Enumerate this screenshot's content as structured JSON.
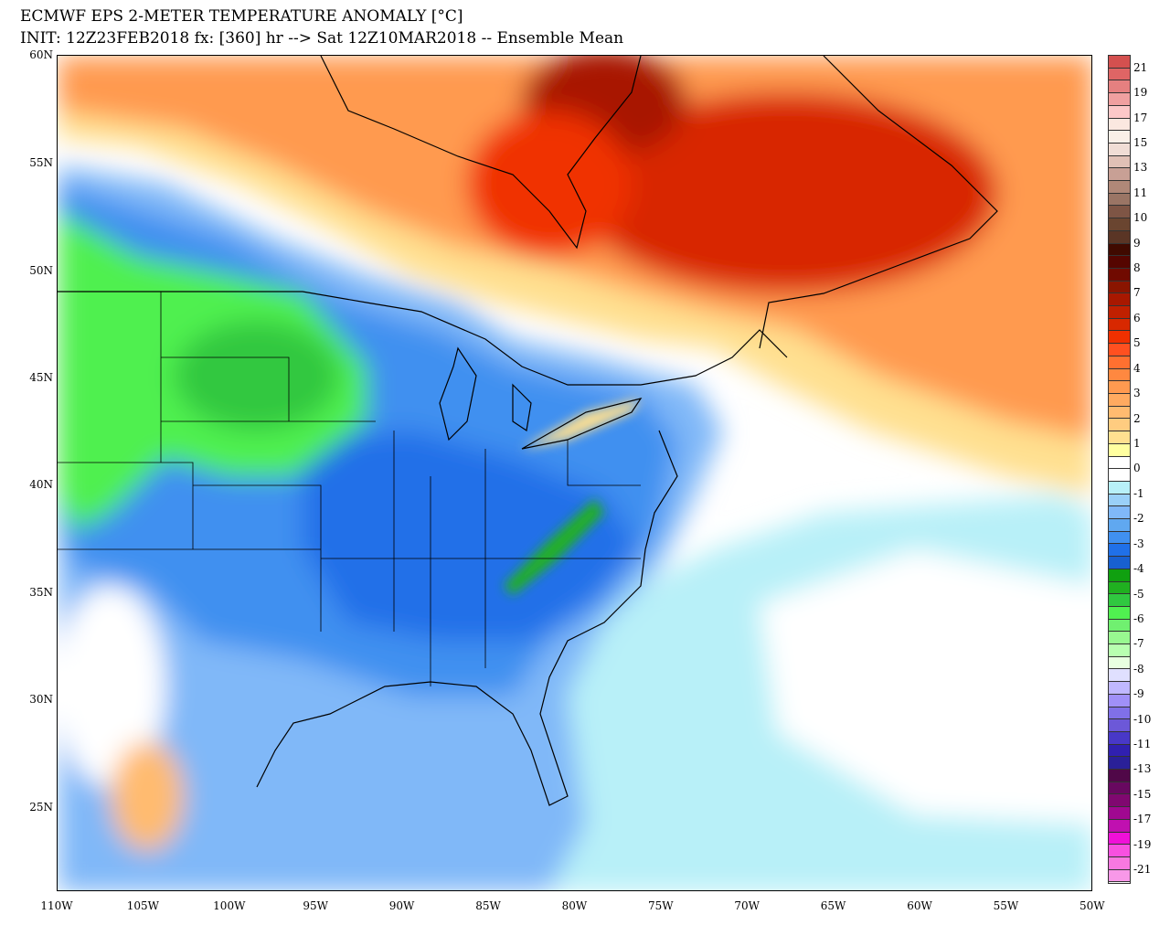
{
  "header": {
    "title": "ECMWF EPS 2-METER TEMPERATURE ANOMALY [°C]",
    "subtitle": "INIT: 12Z23FEB2018 fx: [360] hr --> Sat 12Z10MAR2018 -- Ensemble Mean"
  },
  "axes": {
    "lat_labels": [
      "60N",
      "55N",
      "50N",
      "45N",
      "40N",
      "35N",
      "30N",
      "25N"
    ],
    "lon_labels": [
      "110W",
      "105W",
      "100W",
      "95W",
      "90W",
      "85W",
      "80W",
      "75W",
      "70W",
      "65W",
      "60W",
      "55W",
      "50W"
    ]
  },
  "colorbar": {
    "labels": [
      "21",
      "19",
      "17",
      "15",
      "13",
      "11",
      "10",
      "9",
      "8",
      "7",
      "6",
      "5",
      "4",
      "3",
      "2",
      "1",
      "0",
      "-1",
      "-2",
      "-3",
      "-4",
      "-5",
      "-6",
      "-7",
      "-8",
      "-9",
      "-10",
      "-11",
      "-13",
      "-15",
      "-17",
      "-19",
      "-21"
    ],
    "colors": [
      "#d4504f",
      "#df6565",
      "#e58080",
      "#f0a0a0",
      "#fcc8c8",
      "#fbe8e0",
      "#faf0e8",
      "#f0ddd5",
      "#e0c0b5",
      "#c8a095",
      "#b08878",
      "#9a7565",
      "#7e5545",
      "#6a4530",
      "#5a3525",
      "#400a00",
      "#550500",
      "#700a00",
      "#8a1500",
      "#a81800",
      "#c02000",
      "#d82800",
      "#f03000",
      "#ff5020",
      "#ff7030",
      "#ff8840",
      "#ff9a50",
      "#ffaa60",
      "#ffbb70",
      "#ffcc80",
      "#ffe090",
      "#ffffa0",
      "#ffffff",
      "#ffffff",
      "#b8f0f8",
      "#9ad0f8",
      "#80b8f8",
      "#60a8f0",
      "#4090f0",
      "#2070e8",
      "#1860d0",
      "#10a010",
      "#20b020",
      "#30c840",
      "#50f050",
      "#70f070",
      "#98f890",
      "#b8ffb0",
      "#e8ffe0",
      "#e0e0ff",
      "#c0b8ff",
      "#a090f8",
      "#8070e8",
      "#6c58d8",
      "#4838c8",
      "#3020b0",
      "#2a2098",
      "#500848",
      "#680860",
      "#800870",
      "#a00890",
      "#c010b0",
      "#f010d8",
      "#f850e0",
      "#f878e0",
      "#f898e8"
    ]
  }
}
